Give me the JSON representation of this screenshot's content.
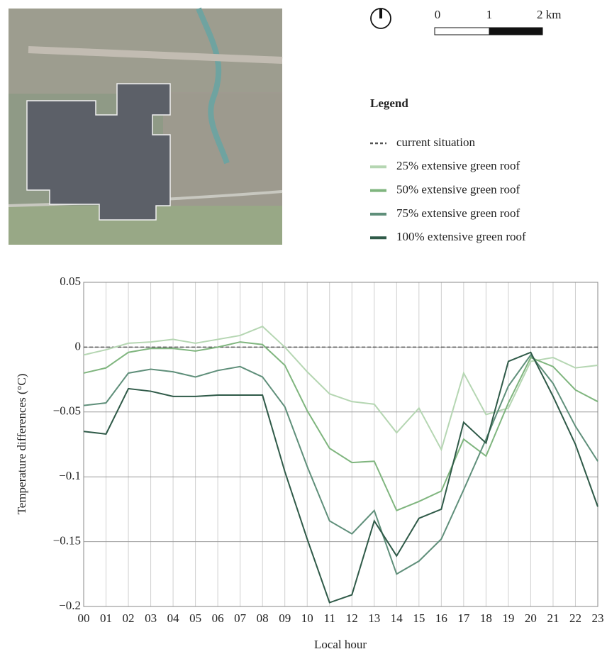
{
  "map": {
    "scale_labels": [
      "0",
      "1",
      "2 km"
    ]
  },
  "chart_data": {
    "type": "line",
    "legend_title": "Legend",
    "x_label": "Local hour",
    "y_label": "Temperature differences (°C)",
    "categories": [
      "00",
      "01",
      "02",
      "03",
      "04",
      "05",
      "06",
      "07",
      "08",
      "09",
      "10",
      "11",
      "12",
      "13",
      "14",
      "15",
      "16",
      "17",
      "18",
      "19",
      "20",
      "21",
      "22",
      "23"
    ],
    "ylim": [
      -0.2,
      0.05
    ],
    "yticks": [
      0.05,
      0,
      {
        "value": -0.05,
        "label": "−0.05"
      },
      {
        "value": -0.1,
        "label": "−0.1"
      },
      {
        "value": -0.15,
        "label": "−0.15"
      },
      {
        "value": -0.2,
        "label": "−0.2"
      }
    ],
    "grid": true,
    "series": [
      {
        "name": "current situation",
        "color": "#555555",
        "dashed": true,
        "values": [
          0,
          0,
          0,
          0,
          0,
          0,
          0,
          0,
          0,
          0,
          0,
          0,
          0,
          0,
          0,
          0,
          0,
          0,
          0,
          0,
          0,
          0,
          0,
          0
        ]
      },
      {
        "name": "25% extensive green roof",
        "color": "#b5d6b2",
        "dashed": false,
        "values": [
          -0.006,
          -0.002,
          0.003,
          0.004,
          0.006,
          0.003,
          0.006,
          0.009,
          0.016,
          0,
          -0.019,
          -0.036,
          -0.042,
          -0.044,
          -0.066,
          -0.047,
          -0.079,
          -0.02,
          -0.052,
          -0.047,
          -0.011,
          -0.008,
          -0.016,
          -0.014
        ]
      },
      {
        "name": "50% extensive green roof",
        "color": "#7fb57e",
        "dashed": false,
        "values": [
          -0.02,
          -0.016,
          -0.004,
          -0.001,
          -0.001,
          -0.003,
          0,
          0.004,
          0.002,
          -0.014,
          -0.049,
          -0.078,
          -0.089,
          -0.088,
          -0.126,
          -0.119,
          -0.111,
          -0.071,
          -0.084,
          -0.043,
          -0.008,
          -0.015,
          -0.033,
          -0.042
        ]
      },
      {
        "name": "75% extensive green roof",
        "color": "#5f8f7a",
        "dashed": false,
        "values": [
          -0.045,
          -0.043,
          -0.02,
          -0.017,
          -0.019,
          -0.023,
          -0.018,
          -0.015,
          -0.023,
          -0.046,
          -0.092,
          -0.134,
          -0.144,
          -0.126,
          -0.175,
          -0.165,
          -0.148,
          -0.11,
          -0.071,
          -0.03,
          -0.006,
          -0.028,
          -0.061,
          -0.088
        ]
      },
      {
        "name": "100% extensive green roof",
        "color": "#2f5a48",
        "dashed": false,
        "values": [
          -0.065,
          -0.067,
          -0.032,
          -0.034,
          -0.038,
          -0.038,
          -0.037,
          -0.037,
          -0.037,
          -0.096,
          -0.148,
          -0.197,
          -0.191,
          -0.134,
          -0.161,
          -0.132,
          -0.125,
          -0.058,
          -0.074,
          -0.011,
          -0.004,
          -0.038,
          -0.075,
          -0.123
        ]
      }
    ]
  }
}
